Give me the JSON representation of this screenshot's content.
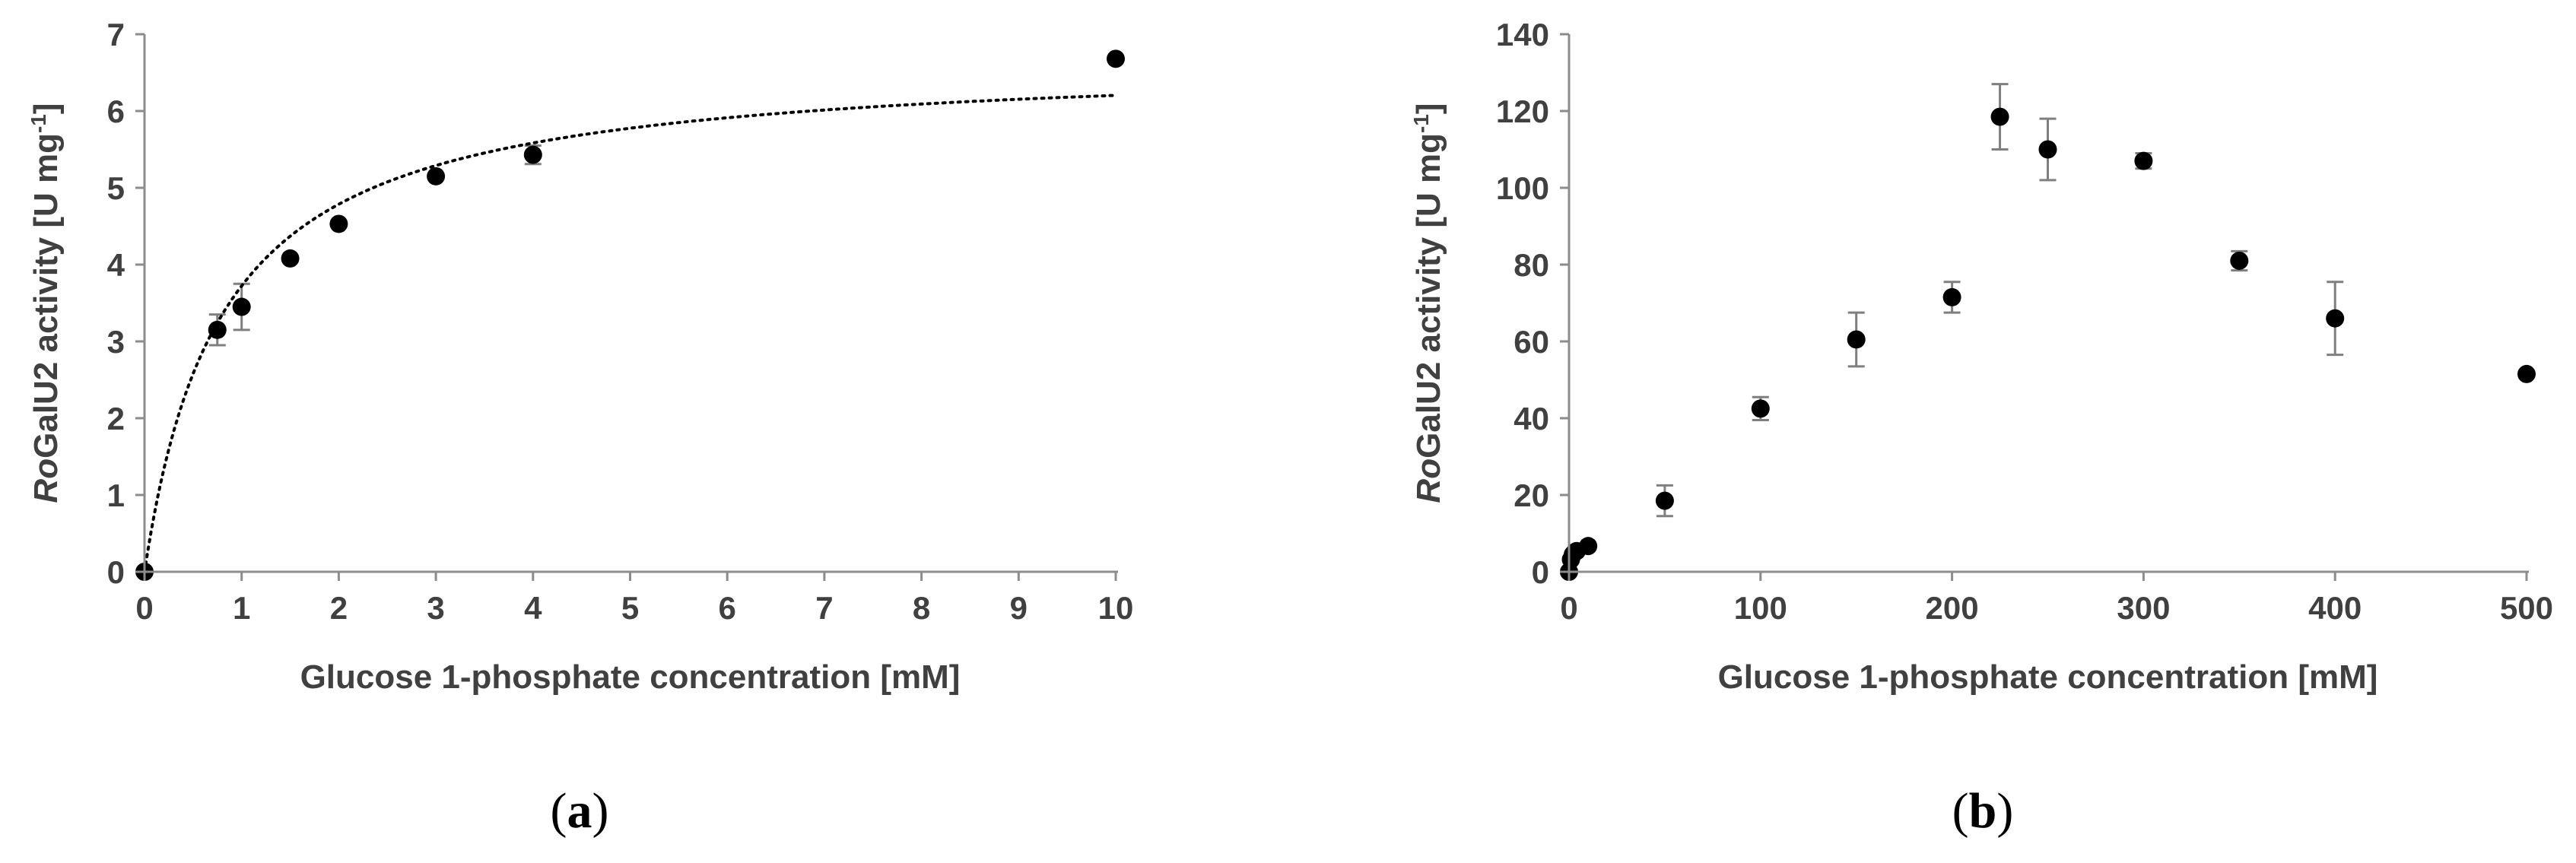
{
  "colors": {
    "axis": "#8c8c8c",
    "marker": "#000000",
    "text": "#404040",
    "errorbar": "#7f7f7f"
  },
  "chart_data": [
    {
      "panel": "(a)",
      "type": "scatter",
      "caption_letter": "a",
      "xlabel": "Glucose 1-phosphate concentration [mM]",
      "ylabel": {
        "italic": "Ro",
        "rest": "GalU2 activity [U mg",
        "superscript": "-1",
        "close": "]"
      },
      "xlim": [
        0,
        10
      ],
      "ylim": [
        0,
        7
      ],
      "xticks": [
        0,
        1,
        2,
        3,
        4,
        5,
        6,
        7,
        8,
        9,
        10
      ],
      "yticks": [
        0,
        1,
        2,
        3,
        4,
        5,
        6,
        7
      ],
      "grid": false,
      "series": [
        {
          "x": [
            0,
            0.75,
            1,
            1.5,
            2,
            3,
            4,
            10
          ],
          "y": [
            0,
            3.15,
            3.45,
            4.08,
            4.53,
            5.15,
            5.43,
            6.68
          ],
          "error": [
            0,
            0.2,
            0.3,
            0,
            0,
            0,
            0.12,
            0
          ]
        }
      ],
      "fit": {
        "style": "dotted",
        "model": "michaelis-menten",
        "vmax": 6.7,
        "km": 0.8
      }
    },
    {
      "panel": "(b)",
      "type": "scatter",
      "caption_letter": "b",
      "xlabel": "Glucose 1-phosphate concentration [mM]",
      "ylabel": {
        "italic": "Ro",
        "rest": "GalU2 activity [U mg",
        "superscript": "-1",
        "close": "]"
      },
      "xlim": [
        0,
        500
      ],
      "ylim": [
        0,
        140
      ],
      "xticks": [
        0,
        100,
        200,
        300,
        400,
        500
      ],
      "yticks": [
        0,
        20,
        40,
        60,
        80,
        100,
        120,
        140
      ],
      "grid": false,
      "series": [
        {
          "x": [
            0,
            1,
            2,
            3,
            4,
            10,
            50,
            100,
            150,
            200,
            225,
            250,
            300,
            350,
            400,
            500
          ],
          "y": [
            0,
            3.2,
            4.5,
            5.1,
            5.4,
            6.7,
            18.5,
            42.5,
            60.5,
            71.5,
            118.5,
            110,
            107,
            81,
            66,
            51.5
          ],
          "error": [
            0,
            0,
            0,
            0,
            0,
            0,
            4,
            3,
            7,
            4,
            8.5,
            8,
            2,
            2.5,
            9.5,
            0
          ]
        }
      ]
    }
  ]
}
